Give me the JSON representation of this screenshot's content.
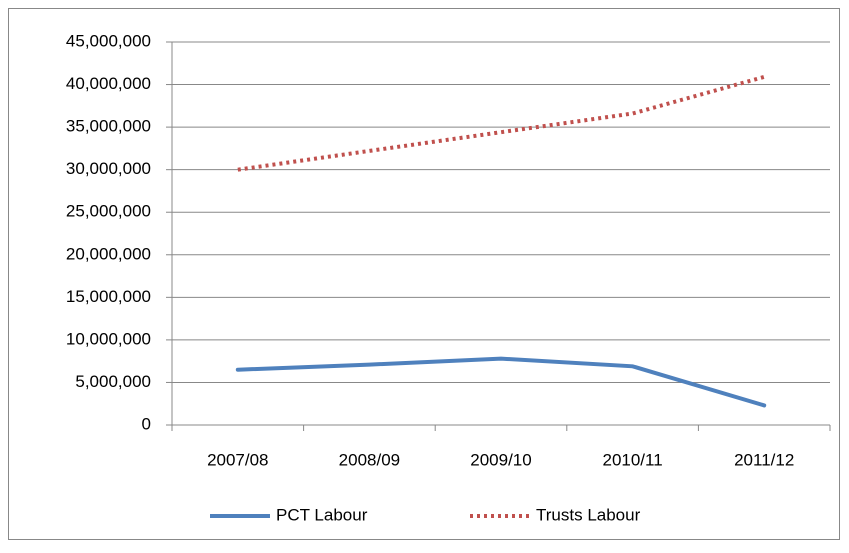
{
  "chart_data": {
    "type": "line",
    "categories": [
      "2007/08",
      "2008/09",
      "2009/10",
      "2010/11",
      "2011/12"
    ],
    "series": [
      {
        "name": "PCT Labour",
        "color": "#4f81bd",
        "dash": "solid",
        "values": [
          6500000,
          7100000,
          7800000,
          6900000,
          2300000
        ]
      },
      {
        "name": "Trusts Labour",
        "color": "#c0504d",
        "dash": "dotted",
        "values": [
          30000000,
          32200000,
          34400000,
          36600000,
          40900000
        ]
      }
    ],
    "ylim": [
      0,
      45000000
    ],
    "yticks": [
      0,
      {
        "value": 5000000,
        "label": "5,000,000"
      },
      {
        "value": 10000000,
        "label": "10,000,000"
      },
      {
        "value": 15000000,
        "label": "15,000,000"
      },
      {
        "value": 20000000,
        "label": "20,000,000"
      },
      {
        "value": 25000000,
        "label": "25,000,000"
      },
      {
        "value": 30000000,
        "label": "30,000,000"
      },
      {
        "value": 35000000,
        "label": "35,000,000"
      },
      {
        "value": 40000000,
        "label": "40,000,000"
      },
      {
        "value": 45000000,
        "label": "45,000,000"
      }
    ],
    "grid": true,
    "legend": "bottom"
  }
}
